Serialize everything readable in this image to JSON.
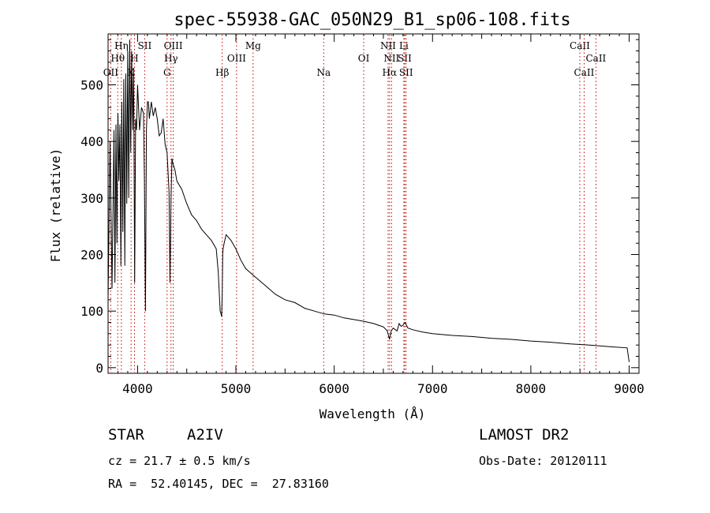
{
  "chart_data": {
    "type": "line",
    "title": "spec-55938-GAC_050N29_B1_sp06-108.fits",
    "xlabel": "Wavelength (Å)",
    "ylabel": "Flux (relative)",
    "xlim": [
      3700,
      9100
    ],
    "ylim": [
      -10,
      590
    ],
    "xticks": [
      4000,
      5000,
      6000,
      7000,
      8000,
      9000
    ],
    "yticks": [
      0,
      100,
      200,
      300,
      400,
      500
    ],
    "series": [
      {
        "x": [
          3700,
          3720,
          3740,
          3760,
          3770,
          3780,
          3790,
          3800,
          3810,
          3820,
          3830,
          3840,
          3850,
          3860,
          3870,
          3880,
          3890,
          3900,
          3910,
          3920,
          3930,
          3940,
          3950,
          3960,
          3970,
          3980,
          3990,
          4000,
          4020,
          4040,
          4060,
          4070,
          4080,
          4090,
          4100,
          4110,
          4120,
          4140,
          4160,
          4180,
          4200,
          4220,
          4240,
          4260,
          4280,
          4300,
          4320,
          4330,
          4340,
          4350,
          4360,
          4380,
          4400,
          4450,
          4500,
          4550,
          4600,
          4650,
          4700,
          4750,
          4800,
          4820,
          4840,
          4850,
          4855,
          4861,
          4866,
          4870,
          4880,
          4900,
          4950,
          5000,
          5050,
          5100,
          5200,
          5300,
          5400,
          5500,
          5600,
          5700,
          5800,
          5900,
          6000,
          6100,
          6200,
          6300,
          6400,
          6450,
          6500,
          6540,
          6563,
          6580,
          6600,
          6640,
          6660,
          6680,
          6700,
          6720,
          6750,
          6800,
          6900,
          7000,
          7200,
          7400,
          7600,
          7800,
          8000,
          8200,
          8400,
          8600,
          8800,
          8980,
          9000
        ],
        "y": [
          120,
          400,
          140,
          420,
          150,
          430,
          220,
          450,
          330,
          430,
          180,
          470,
          240,
          510,
          180,
          520,
          290,
          560,
          300,
          580,
          380,
          560,
          420,
          530,
          150,
          440,
          420,
          500,
          420,
          460,
          450,
          330,
          100,
          420,
          470,
          470,
          440,
          470,
          445,
          460,
          440,
          410,
          415,
          440,
          395,
          380,
          310,
          150,
          300,
          370,
          360,
          350,
          330,
          315,
          290,
          270,
          260,
          245,
          235,
          225,
          210,
          170,
          100,
          95,
          90,
          130,
          200,
          210,
          220,
          235,
          225,
          210,
          190,
          175,
          160,
          145,
          130,
          120,
          115,
          105,
          100,
          95,
          93,
          88,
          85,
          82,
          78,
          75,
          72,
          65,
          50,
          65,
          70,
          65,
          78,
          73,
          75,
          80,
          70,
          67,
          63,
          60,
          57,
          55,
          52,
          50,
          47,
          45,
          42,
          40,
          37,
          35,
          10
        ]
      }
    ],
    "lines": [
      {
        "wl": 3727,
        "label": "OII",
        "row": 3
      },
      {
        "wl": 3798,
        "label": "Hθ",
        "row": 2
      },
      {
        "wl": 3835,
        "label": "Hη",
        "row": 1
      },
      {
        "wl": 3934,
        "label": "K",
        "row": 3
      },
      {
        "wl": 3969,
        "label": "H",
        "row": 2
      },
      {
        "wl": 4072,
        "label": "SII",
        "row": 1
      },
      {
        "wl": 4300,
        "label": "G",
        "row": 3
      },
      {
        "wl": 4340,
        "label": "Hγ",
        "row": 2
      },
      {
        "wl": 4363,
        "label": "OIII",
        "row": 1
      },
      {
        "wl": 4861,
        "label": "Hβ",
        "row": 3
      },
      {
        "wl": 5007,
        "label": "OIII",
        "row": 2
      },
      {
        "wl": 5175,
        "label": "Mg",
        "row": 1
      },
      {
        "wl": 5893,
        "label": "Na",
        "row": 3
      },
      {
        "wl": 6300,
        "label": "OI",
        "row": 2
      },
      {
        "wl": 6548,
        "label": "NII",
        "row": 1
      },
      {
        "wl": 6563,
        "label": "Hα",
        "row": 3
      },
      {
        "wl": 6583,
        "label": "NII",
        "row": 2
      },
      {
        "wl": 6708,
        "label": "Li",
        "row": 1
      },
      {
        "wl": 6717,
        "label": "SII",
        "row": 2
      },
      {
        "wl": 6731,
        "label": "SII",
        "row": 3
      },
      {
        "wl": 8498,
        "label": "CaII",
        "row": 1
      },
      {
        "wl": 8542,
        "label": "CaII",
        "row": 3
      },
      {
        "wl": 8662,
        "label": "CaII",
        "row": 2
      }
    ]
  },
  "info": {
    "object_class": "STAR",
    "subclass": "A2IV",
    "survey": "LAMOST DR2",
    "cz": "cz = 21.7 ± 0.5 km/s",
    "obs_date": "Obs-Date: 20120111",
    "coords": "RA =  52.40145, DEC =  27.83160"
  }
}
